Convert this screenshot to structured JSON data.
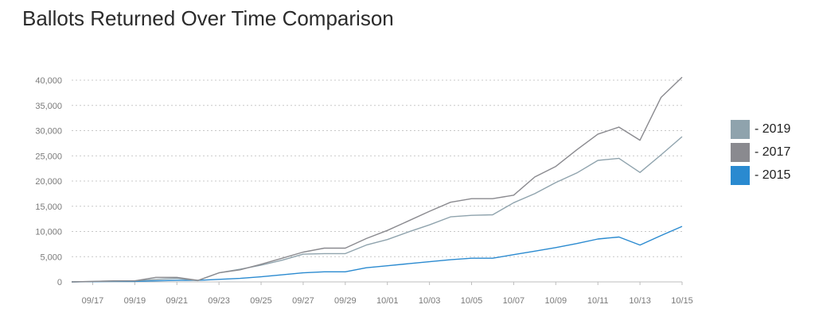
{
  "chart_data": {
    "type": "line",
    "title": "Ballots Returned Over Time Comparison",
    "x": [
      "09/16",
      "09/17",
      "09/18",
      "09/19",
      "09/20",
      "09/21",
      "09/22",
      "09/23",
      "09/24",
      "09/25",
      "09/26",
      "09/27",
      "09/28",
      "09/29",
      "09/30",
      "10/01",
      "10/02",
      "10/03",
      "10/04",
      "10/05",
      "10/06",
      "10/07",
      "10/08",
      "10/09",
      "10/10",
      "10/11",
      "10/12",
      "10/13",
      "10/14",
      "10/15"
    ],
    "x_tick_labels": [
      "09/17",
      "09/19",
      "09/21",
      "09/23",
      "09/25",
      "09/27",
      "09/29",
      "10/01",
      "10/03",
      "10/05",
      "10/07",
      "10/09",
      "10/11",
      "10/13",
      "10/15"
    ],
    "y_tick_labels": [
      "0",
      "5,000",
      "10,000",
      "15,000",
      "20,000",
      "25,000",
      "30,000",
      "35,000",
      "40,000"
    ],
    "ylim": [
      0,
      40000
    ],
    "grid": true,
    "legend_position": "right",
    "series": [
      {
        "name": " - 2019",
        "color": "#8fa3ad",
        "values": [
          0,
          100,
          150,
          200,
          500,
          700,
          250,
          1800,
          2500,
          3300,
          4300,
          5500,
          5600,
          5600,
          7300,
          8400,
          9900,
          11300,
          12900,
          13200,
          13300,
          15700,
          17500,
          19700,
          21600,
          24100,
          24500,
          21700,
          25200,
          28800
        ]
      },
      {
        "name": " - 2017",
        "color": "#8a8a8f",
        "values": [
          0,
          100,
          200,
          200,
          900,
          900,
          300,
          1800,
          2400,
          3500,
          4700,
          5900,
          6700,
          6700,
          8600,
          10200,
          12100,
          14000,
          15800,
          16500,
          16500,
          17200,
          20800,
          22900,
          26200,
          29300,
          30700,
          28100,
          36600,
          40600
        ]
      },
      {
        "name": " - 2015",
        "color": "#2a8ad0",
        "values": [
          0,
          50,
          100,
          100,
          200,
          300,
          300,
          500,
          700,
          1000,
          1400,
          1800,
          2000,
          2000,
          2800,
          3200,
          3600,
          4000,
          4400,
          4700,
          4700,
          5400,
          6100,
          6800,
          7600,
          8500,
          8900,
          7300,
          9200,
          11000
        ]
      }
    ]
  }
}
